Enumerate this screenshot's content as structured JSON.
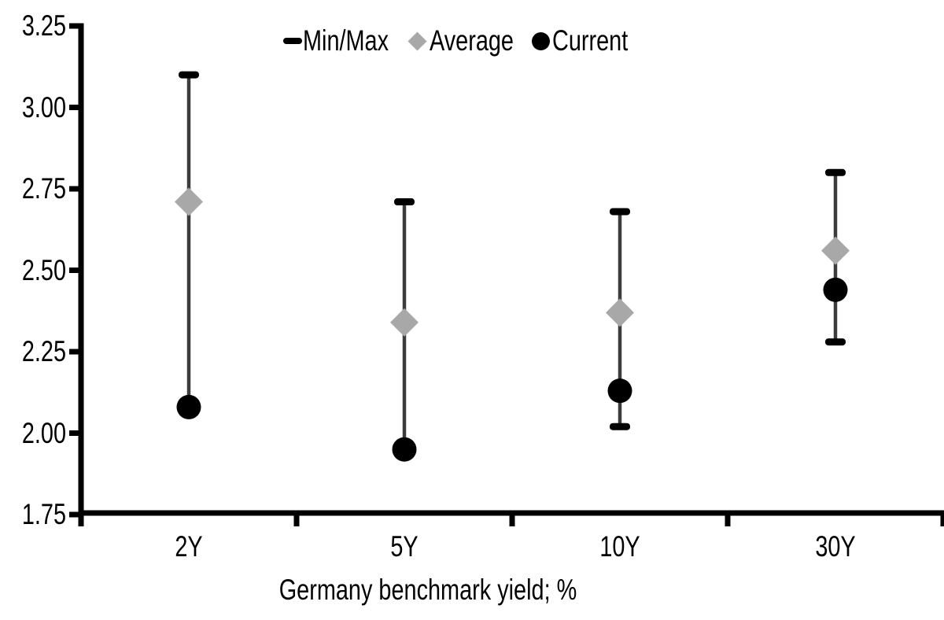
{
  "chart_data": {
    "type": "scatter",
    "subtype": "min-max-range-with-markers",
    "title": "",
    "xlabel": "Germany benchmark yield; %",
    "ylabel": "",
    "categories": [
      "2Y",
      "5Y",
      "10Y",
      "30Y"
    ],
    "series": [
      {
        "name": "Min/Max",
        "marker": "dash",
        "color": "#000000",
        "min": [
          2.08,
          1.95,
          2.02,
          2.28
        ],
        "max": [
          3.1,
          2.71,
          2.68,
          2.8
        ]
      },
      {
        "name": "Average",
        "marker": "diamond",
        "color": "#a8a8a8",
        "values": [
          2.71,
          2.34,
          2.37,
          2.56
        ]
      },
      {
        "name": "Current",
        "marker": "circle",
        "color": "#000000",
        "values": [
          2.08,
          1.95,
          2.13,
          2.44
        ]
      }
    ],
    "ylim": [
      1.75,
      3.25
    ],
    "ytick_step": 0.25,
    "ytick_labels": [
      "3.25",
      "3.00",
      "2.75",
      "2.50",
      "2.25",
      "2.00",
      "1.75"
    ],
    "grid": false,
    "legend_position": "top",
    "colors": {
      "axis": "#000000",
      "whisker": "#3c3c3c",
      "average_fill": "#a8a8a8",
      "current_fill": "#000000",
      "background": "#ffffff",
      "text": "#000000"
    }
  }
}
